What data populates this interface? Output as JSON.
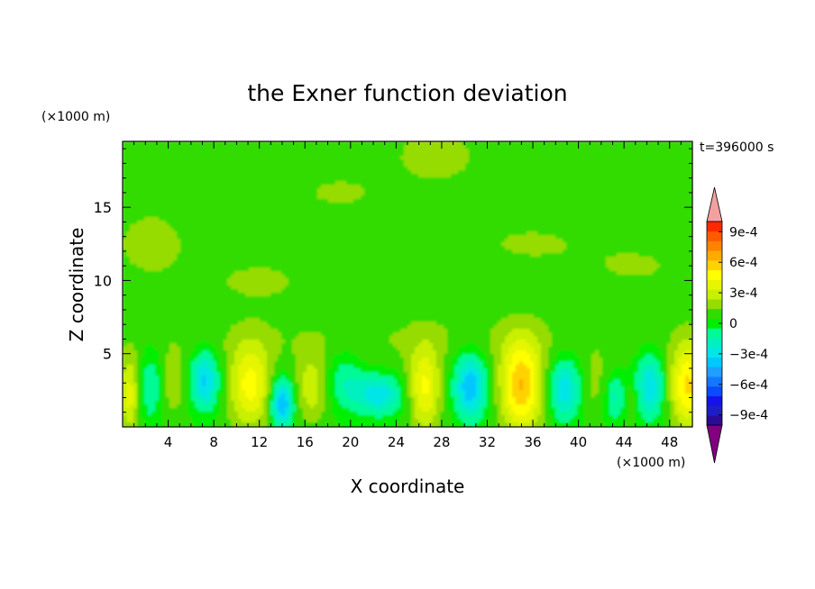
{
  "chart_data": {
    "type": "heatmap",
    "title": "the Exner function deviation",
    "xlabel": "X coordinate",
    "ylabel": "Z coordinate",
    "x_unit": "(×1000 m)",
    "y_unit": "(×1000 m)",
    "time_label": "t=396000 s",
    "xlim": [
      0,
      50
    ],
    "ylim": [
      0,
      19.5
    ],
    "x_ticks": [
      4,
      8,
      12,
      16,
      20,
      24,
      28,
      32,
      36,
      40,
      44,
      48
    ],
    "x_tick_labels": [
      "4",
      "8",
      "12",
      "16",
      "20",
      "24",
      "28",
      "32",
      "36",
      "40",
      "44",
      "48"
    ],
    "y_ticks": [
      5,
      10,
      15
    ],
    "y_tick_labels": [
      "5",
      "10",
      "15"
    ],
    "colorbar": {
      "levels": [
        -0.0011,
        -0.001,
        -0.0009,
        -0.0008,
        -0.0007,
        -0.0006,
        -0.0005,
        -0.0004,
        -0.0003,
        -0.0002,
        -0.0001,
        0,
        0.0001,
        0.0002,
        0.0003,
        0.0004,
        0.0005,
        0.0006,
        0.0007,
        0.0008,
        0.0009,
        0.001,
        0.0011
      ],
      "colors": [
        "#800080",
        "#2a0b96",
        "#1e1ec8",
        "#1414e8",
        "#0a4bff",
        "#1478ff",
        "#1ea0ff",
        "#00c8ff",
        "#00e6e6",
        "#00f0c0",
        "#00fa96",
        "#00ee00",
        "#32dc00",
        "#96dc00",
        "#c8f000",
        "#e6f500",
        "#ffff00",
        "#ffd200",
        "#ffaa00",
        "#ff8200",
        "#ff5a00",
        "#ff2800",
        "#f4a0a0"
      ],
      "tick_values": [
        0.0009,
        0.0006,
        0.0003,
        0,
        -0.0003,
        -0.0006,
        -0.0009
      ],
      "tick_labels": [
        "9e-4",
        "6e-4",
        "3e-4",
        "0",
        "−3e-4",
        "−6e-4",
        "−9e-4"
      ]
    },
    "field": {
      "background": 2e-05,
      "features": [
        {
          "x": 0.6,
          "z": 2.2,
          "sx": 0.6,
          "sz": 1.8,
          "a": 0.00032
        },
        {
          "x": 2.5,
          "z": 2.8,
          "sx": 0.7,
          "sz": 1.8,
          "a": -0.00022
        },
        {
          "x": 4.5,
          "z": 3.0,
          "sx": 0.8,
          "sz": 1.6,
          "a": 0.00015
        },
        {
          "x": 7.2,
          "z": 3.2,
          "sx": 0.9,
          "sz": 1.4,
          "a": -0.00045
        },
        {
          "x": 11.2,
          "z": 2.8,
          "sx": 1.3,
          "sz": 2.0,
          "a": 0.00042
        },
        {
          "x": 14.0,
          "z": 1.6,
          "sx": 0.7,
          "sz": 1.2,
          "a": -0.00055
        },
        {
          "x": 16.6,
          "z": 2.6,
          "sx": 1.0,
          "sz": 1.6,
          "a": 0.00025
        },
        {
          "x": 19.5,
          "z": 3.2,
          "sx": 1.2,
          "sz": 1.5,
          "a": -0.0002
        },
        {
          "x": 22.5,
          "z": 2.2,
          "sx": 1.5,
          "sz": 1.0,
          "a": -0.00038
        },
        {
          "x": 26.5,
          "z": 2.6,
          "sx": 1.0,
          "sz": 2.0,
          "a": 0.0004
        },
        {
          "x": 30.5,
          "z": 2.8,
          "sx": 1.0,
          "sz": 1.6,
          "a": -0.00052
        },
        {
          "x": 35.0,
          "z": 2.8,
          "sx": 1.3,
          "sz": 2.2,
          "a": 0.00058
        },
        {
          "x": 38.8,
          "z": 2.6,
          "sx": 1.0,
          "sz": 1.5,
          "a": -0.0004
        },
        {
          "x": 41.5,
          "z": 2.8,
          "sx": 0.9,
          "sz": 1.5,
          "a": 0.00012
        },
        {
          "x": 43.3,
          "z": 2.0,
          "sx": 0.8,
          "sz": 1.2,
          "a": -0.00025
        },
        {
          "x": 44.5,
          "z": 1.8,
          "sx": 0.5,
          "sz": 1.0,
          "a": 0.00015
        },
        {
          "x": 46.3,
          "z": 2.8,
          "sx": 0.9,
          "sz": 1.6,
          "a": -0.0004
        },
        {
          "x": 49.6,
          "z": 2.8,
          "sx": 1.1,
          "sz": 2.0,
          "a": 0.0005
        },
        {
          "x": 2.5,
          "z": 12.5,
          "sx": 3.0,
          "sz": 2.2,
          "a": 0.00011
        },
        {
          "x": 12.0,
          "z": 10.0,
          "sx": 3.5,
          "sz": 1.2,
          "a": 0.0001
        },
        {
          "x": 19.0,
          "z": 16.0,
          "sx": 3.0,
          "sz": 1.0,
          "a": 0.0001
        },
        {
          "x": 27.5,
          "z": 18.5,
          "sx": 3.0,
          "sz": 1.5,
          "a": 0.00013
        },
        {
          "x": 36.0,
          "z": 12.5,
          "sx": 4.0,
          "sz": 1.1,
          "a": 0.0001
        },
        {
          "x": 45.0,
          "z": 11.0,
          "sx": 3.0,
          "sz": 1.0,
          "a": 0.0001
        },
        {
          "x": 25.0,
          "z": 6.0,
          "sx": 20.0,
          "sz": 1.5,
          "a": 8e-05
        }
      ]
    }
  }
}
